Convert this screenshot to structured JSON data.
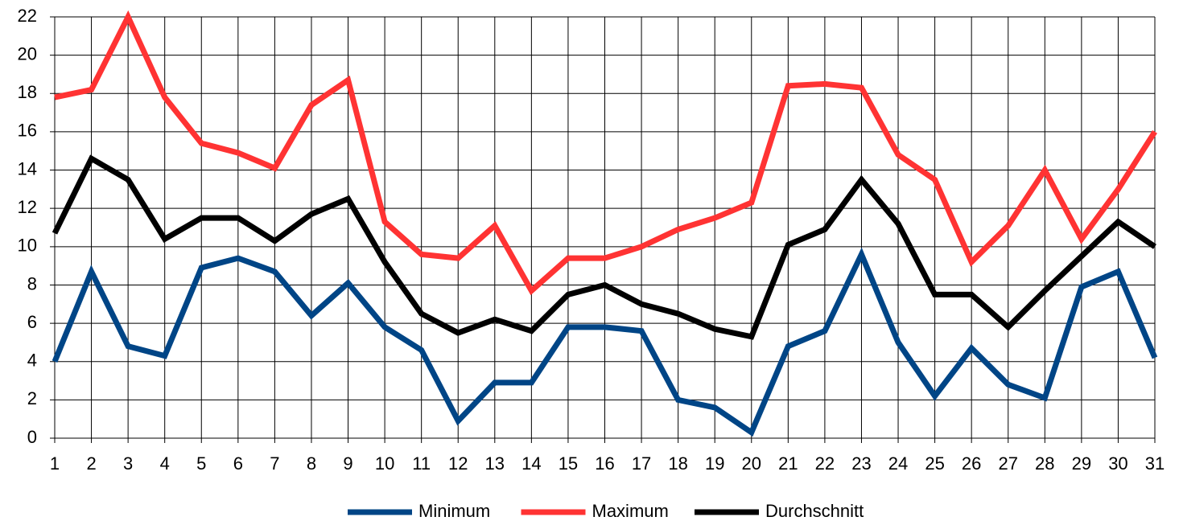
{
  "chart_data": {
    "type": "line",
    "x": [
      1,
      2,
      3,
      4,
      5,
      6,
      7,
      8,
      9,
      10,
      11,
      12,
      13,
      14,
      15,
      16,
      17,
      18,
      19,
      20,
      21,
      22,
      23,
      24,
      25,
      26,
      27,
      28,
      29,
      30,
      31
    ],
    "xlim": [
      1,
      31
    ],
    "xticks": [
      1,
      2,
      3,
      4,
      5,
      6,
      7,
      8,
      9,
      10,
      11,
      12,
      13,
      14,
      15,
      16,
      17,
      18,
      19,
      20,
      21,
      22,
      23,
      24,
      25,
      26,
      27,
      28,
      29,
      30,
      31
    ],
    "ylim": [
      0,
      22
    ],
    "yticks": [
      0,
      2,
      4,
      6,
      8,
      10,
      12,
      14,
      16,
      18,
      20,
      22
    ],
    "grid": true,
    "legend": "bottom",
    "series": [
      {
        "name": "Minimum",
        "color": "#004586",
        "values": [
          4.0,
          8.7,
          4.8,
          4.3,
          8.9,
          9.4,
          8.7,
          6.4,
          8.1,
          5.8,
          4.6,
          0.9,
          2.9,
          2.9,
          5.8,
          5.8,
          5.6,
          2.0,
          1.6,
          0.3,
          4.8,
          5.6,
          9.6,
          5.0,
          2.2,
          4.7,
          2.8,
          2.1,
          7.9,
          8.7,
          4.2
        ]
      },
      {
        "name": "Maximum",
        "color": "#ff3333",
        "values": [
          17.8,
          18.2,
          22.0,
          17.8,
          15.4,
          14.9,
          14.1,
          17.4,
          18.7,
          11.3,
          9.6,
          9.4,
          11.1,
          7.7,
          9.4,
          9.4,
          10.0,
          10.9,
          11.5,
          12.3,
          18.4,
          18.5,
          18.3,
          14.8,
          13.5,
          9.2,
          11.1,
          14.0,
          10.4,
          13.0,
          16.0
        ]
      },
      {
        "name": "Durchschnitt",
        "color": "#000000",
        "values": [
          10.7,
          14.6,
          13.5,
          10.4,
          11.5,
          11.5,
          10.3,
          11.7,
          12.5,
          9.2,
          6.5,
          5.5,
          6.2,
          5.6,
          7.5,
          8.0,
          7.0,
          6.5,
          5.7,
          5.3,
          10.1,
          10.9,
          13.5,
          11.2,
          7.5,
          7.5,
          5.8,
          7.7,
          9.5,
          11.3,
          10.0
        ]
      }
    ]
  }
}
